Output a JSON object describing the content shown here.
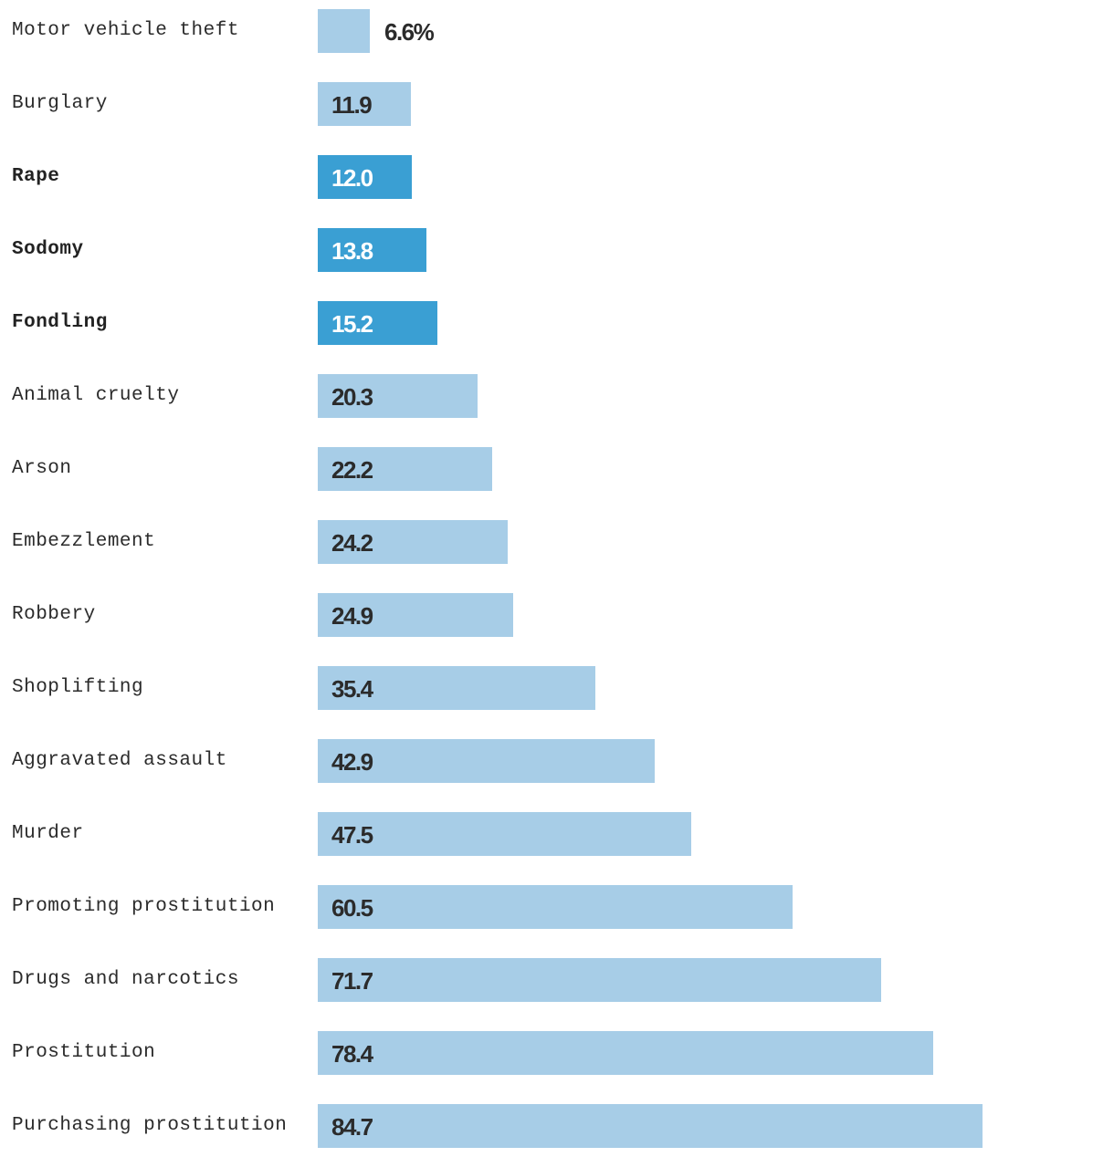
{
  "chart_data": {
    "type": "bar",
    "orientation": "horizontal",
    "unit_suffix": "%",
    "xlim": [
      0,
      100
    ],
    "colors": {
      "default_bar": "#a7cde7",
      "highlight_bar": "#3a9fd3",
      "default_value_text": "#2b2b2b",
      "highlight_value_text": "#ffffff"
    },
    "categories": [
      "Motor vehicle theft",
      "Burglary",
      "Rape",
      "Sodomy",
      "Fondling",
      "Animal cruelty",
      "Arson",
      "Embezzlement",
      "Robbery",
      "Shoplifting",
      "Aggravated assault",
      "Murder",
      "Promoting prostitution",
      "Drugs and narcotics",
      "Prostitution",
      "Purchasing prostitution"
    ],
    "values": [
      6.6,
      11.9,
      12.0,
      13.8,
      15.2,
      20.3,
      22.2,
      24.2,
      24.9,
      35.4,
      42.9,
      47.5,
      60.5,
      71.7,
      78.4,
      84.7
    ],
    "value_labels": [
      "6.6%",
      "11.9",
      "12.0",
      "13.8",
      "15.2",
      "20.3",
      "22.2",
      "24.2",
      "24.9",
      "35.4",
      "42.9",
      "47.5",
      "60.5",
      "71.7",
      "78.4",
      "84.7"
    ],
    "highlighted": [
      "Rape",
      "Sodomy",
      "Fondling"
    ]
  }
}
